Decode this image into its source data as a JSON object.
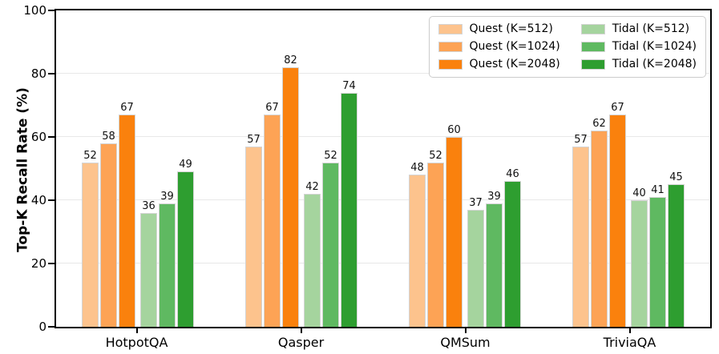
{
  "chart_data": {
    "type": "bar",
    "title": "",
    "ylabel": "Top-K Recall Rate (%)",
    "xlabel": "",
    "ylim": [
      0,
      100
    ],
    "yticks": [
      0,
      20,
      40,
      60,
      80,
      100
    ],
    "grid": true,
    "grid_color": "#e8e8e8",
    "bar_edge_color": "#d4d4d4",
    "legend_position": "upper right",
    "categories": [
      "HotpotQA",
      "Qasper",
      "QMSum",
      "TriviaQA"
    ],
    "series": [
      {
        "name": "Quest (K=512)",
        "color": "#fdc38d",
        "values": [
          52,
          57,
          48,
          57
        ]
      },
      {
        "name": "Quest (K=1024)",
        "color": "#fda355",
        "values": [
          58,
          67,
          52,
          62
        ]
      },
      {
        "name": "Quest (K=2048)",
        "color": "#fa810d",
        "values": [
          67,
          82,
          60,
          67
        ]
      },
      {
        "name": "Tidal (K=512)",
        "color": "#a5d49e",
        "values": [
          36,
          42,
          37,
          40
        ]
      },
      {
        "name": "Tidal (K=1024)",
        "color": "#5fb961",
        "values": [
          39,
          52,
          39,
          41
        ]
      },
      {
        "name": "Tidal (K=2048)",
        "color": "#2e9e30",
        "values": [
          49,
          74,
          46,
          45
        ]
      }
    ]
  }
}
